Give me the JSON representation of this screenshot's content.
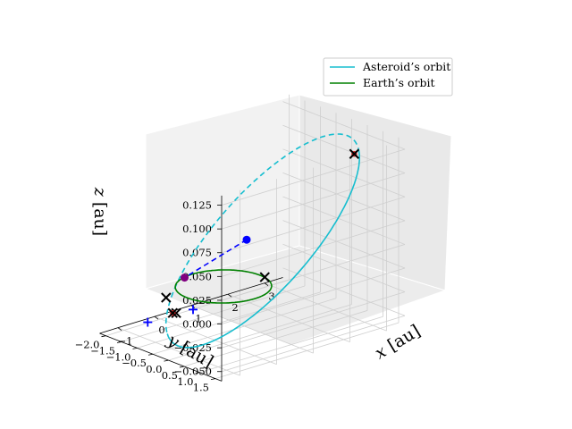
{
  "chart_data": {
    "type": "line-3d",
    "axes": {
      "xlabel": "$x$ [au]",
      "ylabel": "$y$ [au]",
      "zlabel": "$z$ [au]",
      "xticks": [
        "−1",
        "0",
        "1",
        "2",
        "3"
      ],
      "yticks": [
        "1.5",
        "1.0",
        "0.5",
        "0.0",
        "−0.5",
        "−1.0",
        "−1.5",
        "−2.0"
      ],
      "zticks": [
        "0.125",
        "0.100",
        "0.075",
        "0.050",
        "0.025",
        "0.000",
        "−0.025",
        "−0.050"
      ],
      "xlim": [
        -1.5,
        3.5
      ],
      "ylim": [
        -2.2,
        1.7
      ],
      "zlim": [
        -0.06,
        0.135
      ],
      "grid": true,
      "pane_color": "#f2f2f2"
    },
    "series": [
      {
        "name": "Asteroid’s orbit",
        "color": "#17becf",
        "kind": "ellipse",
        "center": [
          1.2,
          -0.15,
          0.032
        ],
        "axis_u": [
          2.05,
          0.65,
          0.082
        ],
        "axis_v": [
          -0.25,
          0.8,
          -0.042
        ],
        "front_style": "solid",
        "back_style": "dashed"
      },
      {
        "name": "Earth’s orbit",
        "color": "#008000",
        "kind": "circle",
        "center": [
          0,
          0,
          0
        ],
        "radius": 1.0
      }
    ],
    "points": [
      {
        "name": "asteroid-position",
        "x": 0.25,
        "y": 0.45,
        "z": 0.052,
        "marker": "dot",
        "color": "#0000ff"
      },
      {
        "name": "earth-position",
        "x": -0.25,
        "y": -0.95,
        "z": 0.0,
        "marker": "dot",
        "color": "#800080"
      },
      {
        "name": "node-cross-a",
        "x": 1.0,
        "y": 0.15,
        "z": 0.0,
        "marker": "x",
        "color": "#000000"
      },
      {
        "name": "node-cross-b",
        "x": -0.65,
        "y": -0.75,
        "z": -0.03,
        "marker": "x",
        "color": "#000000"
      },
      {
        "name": "node-cross-c",
        "x": -0.2,
        "y": -1.6,
        "z": -0.03,
        "marker": "x",
        "color": "#000000"
      },
      {
        "name": "aphelion-marker",
        "x": 3.1,
        "y": 0.55,
        "z": 0.11,
        "marker": "x-red",
        "color": "#000000"
      },
      {
        "name": "perihelion-marker",
        "x": -0.7,
        "y": -0.8,
        "z": -0.03,
        "marker": "x-red",
        "color": "#000000"
      },
      {
        "name": "plus-marker-a",
        "x": -1.0,
        "y": 0.2,
        "z": -0.01,
        "marker": "plus",
        "color": "#0000ff"
      },
      {
        "name": "plus-marker-b",
        "x": -0.7,
        "y": -1.6,
        "z": -0.05,
        "marker": "plus",
        "color": "#0000ff"
      }
    ],
    "segments": [
      {
        "name": "asteroid-earth-line",
        "from": "asteroid-position",
        "to": "earth-position",
        "color": "#0000ff",
        "style": "dashed"
      }
    ],
    "legend": {
      "placement": "top-right",
      "entries": [
        "Asteroid’s orbit",
        "Earth’s orbit"
      ]
    }
  }
}
